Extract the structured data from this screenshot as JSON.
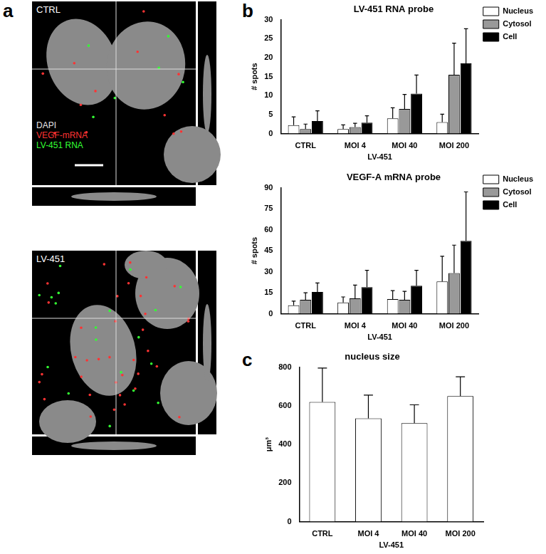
{
  "figure": {
    "panel_labels": [
      "a",
      "b",
      "c"
    ],
    "images": [
      {
        "title": "CTRL",
        "channels": [
          {
            "name": "DAPI",
            "color": "#e6e6e6"
          },
          {
            "name": "VEGF-mRNA",
            "color": "#ff3333"
          },
          {
            "name": "LV-451 RNA",
            "color": "#33ff33"
          }
        ]
      },
      {
        "title": "LV-451"
      }
    ]
  },
  "chart_data": [
    {
      "type": "bar",
      "title": "LV-451 RNA probe",
      "x_label": "LV-451",
      "y_label": "# spots",
      "categories": [
        "CTRL",
        "MOI 4",
        "MOI 40",
        "MOI 200"
      ],
      "series": [
        {
          "name": "Nucleus",
          "color": "#ffffff",
          "values": [
            2.2,
            1.2,
            4.0,
            3.0
          ],
          "errors": [
            2.2,
            1.1,
            2.8,
            2.1
          ]
        },
        {
          "name": "Cytosol",
          "color": "#999999",
          "values": [
            1.2,
            1.7,
            6.5,
            15.5
          ],
          "errors": [
            1.3,
            1.0,
            3.8,
            8.3
          ]
        },
        {
          "name": "Cell",
          "color": "#000000",
          "values": [
            3.3,
            2.9,
            10.5,
            18.5
          ],
          "errors": [
            2.7,
            1.8,
            4.9,
            9.1
          ]
        }
      ],
      "ylim": [
        0,
        30
      ],
      "yticks": [
        0,
        5,
        10,
        15,
        20,
        25,
        30
      ],
      "grid": false,
      "legend": "right"
    },
    {
      "type": "bar",
      "title": "VEGF-A mRNA probe",
      "x_label": "LV-451",
      "y_label": "# spots",
      "categories": [
        "CTRL",
        "MOI 4",
        "MOI 40",
        "MOI 200"
      ],
      "series": [
        {
          "name": "Nucleus",
          "color": "#ffffff",
          "values": [
            6,
            8,
            10.5,
            23
          ],
          "errors": [
            3,
            4,
            6,
            18
          ]
        },
        {
          "name": "Cytosol",
          "color": "#999999",
          "values": [
            10,
            11,
            10,
            29
          ],
          "errors": [
            5,
            9.5,
            6,
            20
          ]
        },
        {
          "name": "Cell",
          "color": "#000000",
          "values": [
            15.5,
            19,
            20,
            52
          ],
          "errors": [
            6.5,
            12,
            11,
            35
          ]
        }
      ],
      "ylim": [
        0,
        90
      ],
      "yticks": [
        0,
        15,
        30,
        45,
        60,
        75,
        90
      ],
      "grid": false,
      "legend": "right"
    },
    {
      "type": "bar",
      "title": "nucleus size",
      "x_label": "LV-451",
      "y_label": "μm³",
      "categories": [
        "CTRL",
        "MOI 4",
        "MOI 40",
        "MOI 200"
      ],
      "color": "#ffffff",
      "values": [
        620,
        535,
        510,
        650
      ],
      "errors": [
        175,
        120,
        95,
        100
      ],
      "ylim": [
        0,
        800
      ],
      "yticks": [
        0,
        200,
        400,
        600,
        800
      ],
      "grid": false
    }
  ]
}
